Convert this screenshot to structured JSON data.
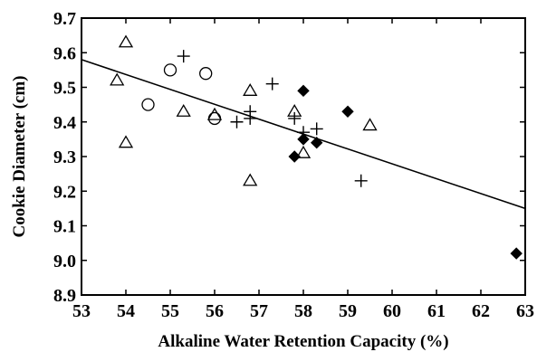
{
  "chart_data": {
    "type": "scatter",
    "title": "",
    "xlabel": "Alkaline Water Retention Capacity (%)",
    "ylabel": "Cookie Diameter (cm)",
    "xlim": [
      53,
      63
    ],
    "ylim": [
      8.9,
      9.7
    ],
    "x_ticks": [
      "53",
      "54",
      "55",
      "56",
      "57",
      "58",
      "59",
      "60",
      "61",
      "62",
      "63"
    ],
    "y_ticks": [
      "8.9",
      "9.0",
      "9.1",
      "9.2",
      "9.3",
      "9.4",
      "9.5",
      "9.6",
      "9.7"
    ],
    "grid": false,
    "legend": "none",
    "series": [
      {
        "marker": "triangle-open",
        "points": [
          [
            53.8,
            9.52
          ],
          [
            54.0,
            9.63
          ],
          [
            54.0,
            9.34
          ],
          [
            55.3,
            9.43
          ],
          [
            56.0,
            9.42
          ],
          [
            56.8,
            9.49
          ],
          [
            56.8,
            9.23
          ],
          [
            57.8,
            9.43
          ],
          [
            58.0,
            9.31
          ],
          [
            59.5,
            9.39
          ]
        ]
      },
      {
        "marker": "circle-open",
        "points": [
          [
            54.5,
            9.45
          ],
          [
            55.0,
            9.55
          ],
          [
            55.8,
            9.54
          ],
          [
            56.0,
            9.41
          ]
        ]
      },
      {
        "marker": "plus",
        "points": [
          [
            55.3,
            9.59
          ],
          [
            56.5,
            9.4
          ],
          [
            56.8,
            9.43
          ],
          [
            56.8,
            9.41
          ],
          [
            57.3,
            9.51
          ],
          [
            57.8,
            9.41
          ],
          [
            58.0,
            9.37
          ],
          [
            58.3,
            9.38
          ],
          [
            59.3,
            9.23
          ]
        ]
      },
      {
        "marker": "diamond-filled",
        "points": [
          [
            57.8,
            9.3
          ],
          [
            58.0,
            9.49
          ],
          [
            58.0,
            9.35
          ],
          [
            58.3,
            9.34
          ],
          [
            59.0,
            9.43
          ],
          [
            62.8,
            9.02
          ]
        ]
      }
    ],
    "fit_line": {
      "x": [
        53,
        63
      ],
      "y": [
        9.58,
        9.15
      ]
    }
  }
}
